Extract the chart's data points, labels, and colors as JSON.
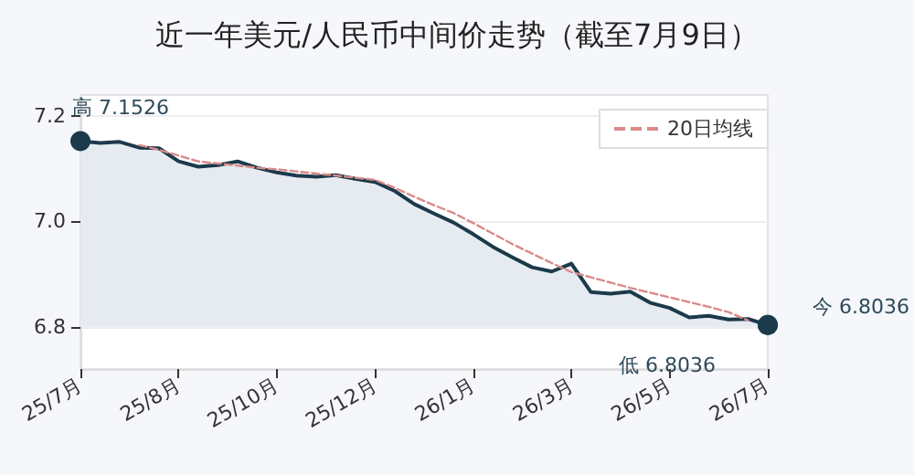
{
  "chart_data": {
    "type": "area",
    "title": "近一年美元/人民币中间价走势（截至7月9日）",
    "categories": [
      "25/7月",
      null,
      null,
      null,
      null,
      "25/8月",
      null,
      null,
      null,
      null,
      "25/10月",
      null,
      null,
      null,
      null,
      "25/12月",
      null,
      null,
      null,
      null,
      "26/1月",
      null,
      null,
      null,
      null,
      "26/3月",
      null,
      null,
      null,
      null,
      "26/5月",
      null,
      null,
      null,
      null,
      "26/7月"
    ],
    "ylim": [
      6.72,
      7.24
    ],
    "yticks": [
      {
        "value": 6.8,
        "label": "6.8"
      },
      {
        "value": 7,
        "label": "7.0"
      },
      {
        "value": 7.2,
        "label": "7.2"
      }
    ],
    "grid": "y",
    "legend": "top right",
    "series": [
      {
        "color": "#1b3a4b",
        "line_style": "solid",
        "values": [
          7.1526,
          7.149,
          7.151,
          7.14,
          7.139,
          7.114,
          7.104,
          7.107,
          7.114,
          7.102,
          7.093,
          7.087,
          7.085,
          7.088,
          7.081,
          7.075,
          7.058,
          7.033,
          7.015,
          6.998,
          6.976,
          6.952,
          6.932,
          6.913,
          6.905,
          6.92,
          6.866,
          6.863,
          6.867,
          6.846,
          6.836,
          6.818,
          6.821,
          6.814,
          6.815,
          6.8036
        ]
      },
      {
        "type": "line",
        "name": "20日均线",
        "color": "#d98a8a",
        "line_style": "dashed",
        "values": [
          null,
          null,
          null,
          7.145,
          7.136,
          7.125,
          7.114,
          7.11,
          7.106,
          7.102,
          7.099,
          7.095,
          7.091,
          7.087,
          7.083,
          7.079,
          7.064,
          7.047,
          7.031,
          7.016,
          6.997,
          6.977,
          6.957,
          6.939,
          6.921,
          6.904,
          6.894,
          6.884,
          6.874,
          6.865,
          6.856,
          6.847,
          6.838,
          6.828,
          6.812,
          null
        ]
      }
    ],
    "annotations": [
      {
        "text": "高 7.1526",
        "x": "25/7月",
        "y": 7.1526
      },
      {
        "text": "低 6.8036",
        "x": "26/7月",
        "y": 6.8036
      },
      {
        "text": "今 6.8036",
        "x": "26/7月",
        "y": 6.8036
      }
    ]
  }
}
